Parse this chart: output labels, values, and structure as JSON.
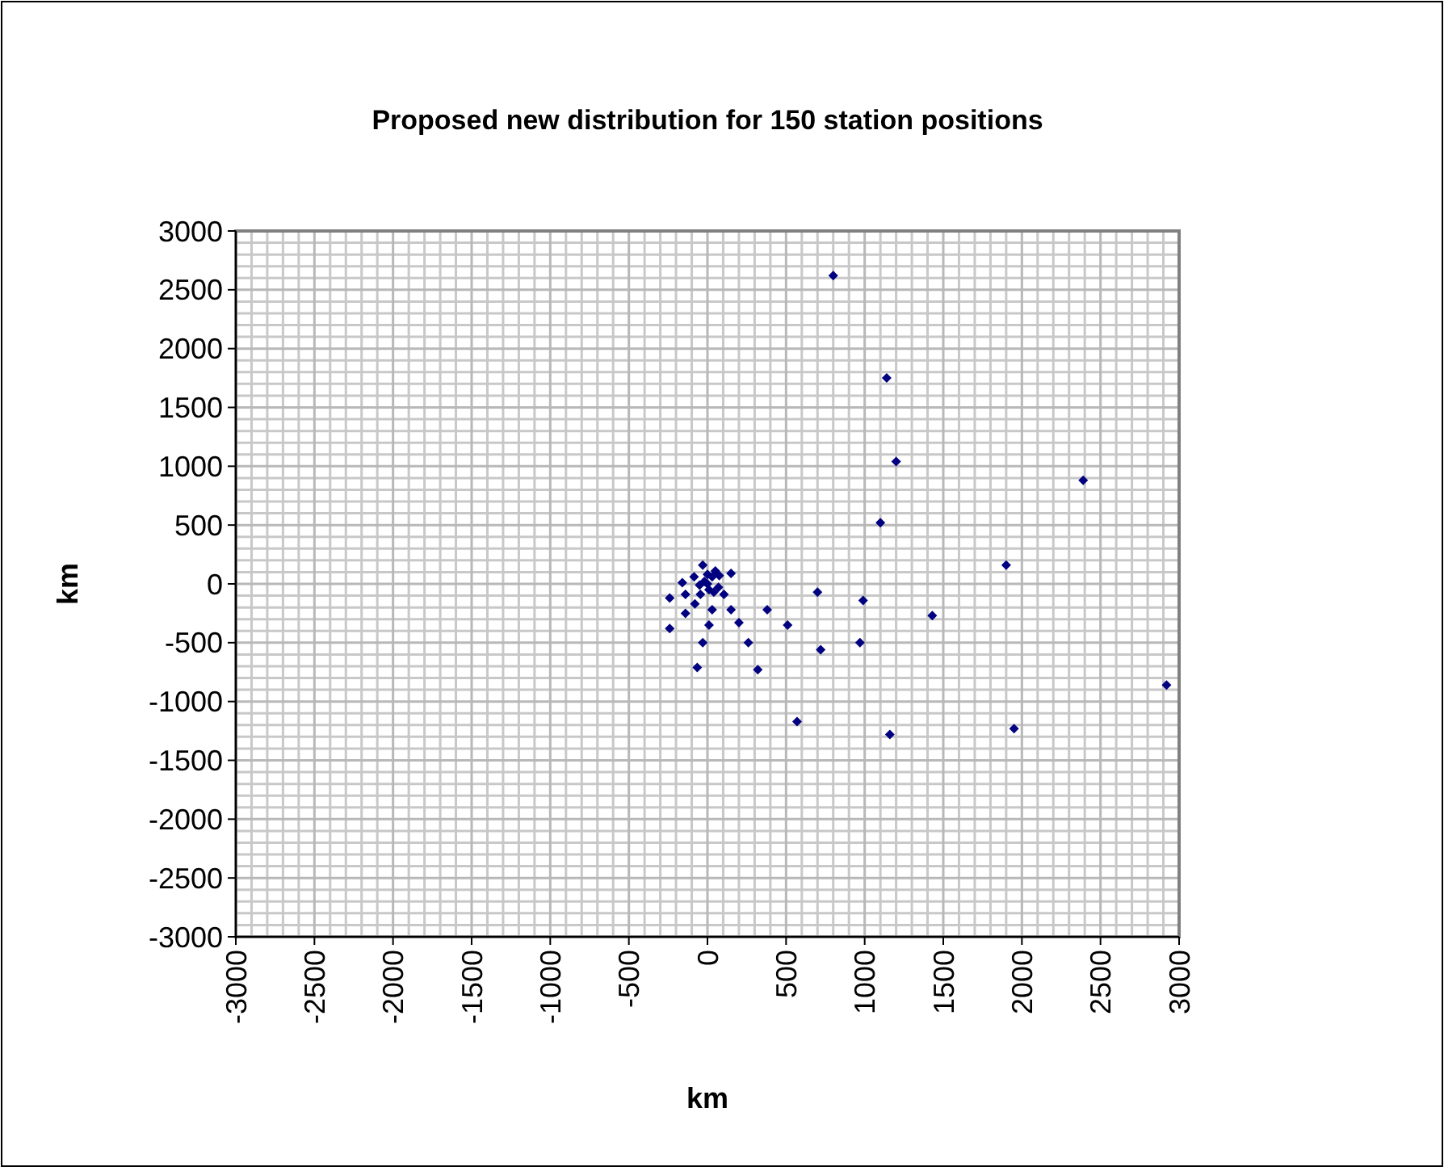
{
  "chart_data": {
    "type": "scatter",
    "title": "Proposed new distribution for 150 station positions",
    "xlabel": "km",
    "ylabel": "km",
    "xlim": [
      -3000,
      3000
    ],
    "ylim": [
      -3000,
      3000
    ],
    "xticks": [
      -3000,
      -2500,
      -2000,
      -1500,
      -1000,
      -500,
      0,
      500,
      1000,
      1500,
      2000,
      2500,
      3000
    ],
    "yticks": [
      -3000,
      -2500,
      -2000,
      -1500,
      -1000,
      -500,
      0,
      500,
      1000,
      1500,
      2000,
      2500,
      3000
    ],
    "grid": true,
    "marker": "diamond",
    "series": [
      {
        "color": "#000080",
        "x": [
          800,
          1140,
          1200,
          1100,
          2390,
          1900,
          990,
          700,
          1430,
          380,
          510,
          150,
          105,
          200,
          260,
          320,
          720,
          970,
          570,
          1160,
          1950,
          2920,
          150,
          -240,
          -240,
          -160,
          -140,
          -140,
          -80,
          -85,
          -30,
          -45,
          30,
          10,
          -30,
          -65,
          0,
          -20,
          10,
          30,
          50,
          75,
          -50,
          40,
          70,
          0
        ],
        "values": [
          2620,
          1750,
          1040,
          520,
          880,
          160,
          -140,
          -70,
          -270,
          -220,
          -350,
          -220,
          -90,
          -330,
          -500,
          -730,
          -560,
          -500,
          -1170,
          -1280,
          -1230,
          -860,
          90,
          -120,
          -380,
          10,
          -90,
          -250,
          -170,
          60,
          160,
          -90,
          -220,
          -350,
          -500,
          -710,
          0,
          20,
          -50,
          60,
          110,
          70,
          -10,
          -70,
          -30,
          80
        ]
      }
    ]
  }
}
